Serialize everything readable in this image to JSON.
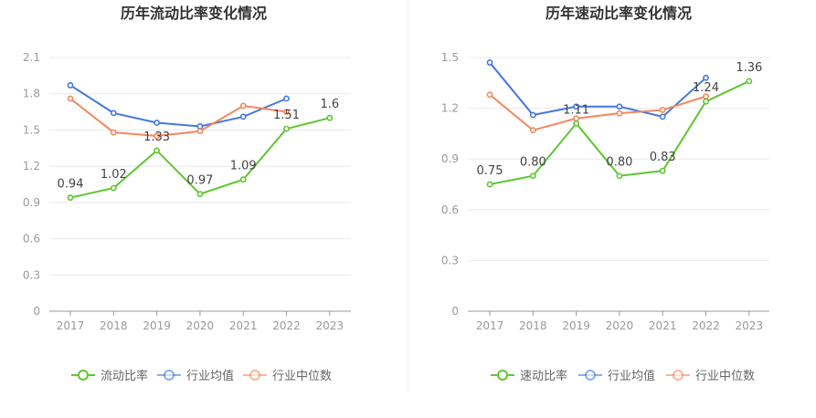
{
  "chart_data": [
    {
      "type": "line",
      "title": "历年流动比率变化情况",
      "categories": [
        "2017",
        "2018",
        "2019",
        "2020",
        "2021",
        "2022",
        "2023"
      ],
      "ylim": [
        0,
        2.1
      ],
      "yticks": [
        "0",
        "0.3",
        "0.6",
        "0.9",
        "1.2",
        "1.5",
        "1.8",
        "2.1"
      ],
      "grid": true,
      "legend_position": "bottom",
      "series": [
        {
          "name": "流动比率",
          "color": "#5fc632",
          "values": [
            0.94,
            1.02,
            1.33,
            0.97,
            1.09,
            1.51,
            1.6
          ],
          "labels": [
            "0.94",
            "1.02",
            "1.33",
            "0.97",
            "1.09",
            "1.51",
            "1.6"
          ]
        },
        {
          "name": "行业均值",
          "color": "#4378e0",
          "values": [
            1.87,
            1.64,
            1.56,
            1.53,
            1.61,
            1.76,
            null
          ]
        },
        {
          "name": "行业中位数",
          "color": "#f5875a",
          "values": [
            1.76,
            1.48,
            1.45,
            1.49,
            1.7,
            1.65,
            null
          ]
        }
      ]
    },
    {
      "type": "line",
      "title": "历年速动比率变化情况",
      "categories": [
        "2017",
        "2018",
        "2019",
        "2020",
        "2021",
        "2022",
        "2023"
      ],
      "ylim": [
        0,
        1.5
      ],
      "yticks": [
        "0",
        "0.3",
        "0.6",
        "0.9",
        "1.2",
        "1.5"
      ],
      "grid": true,
      "legend_position": "bottom",
      "series": [
        {
          "name": "速动比率",
          "color": "#5fc632",
          "values": [
            0.75,
            0.8,
            1.11,
            0.8,
            0.83,
            1.24,
            1.36
          ],
          "labels": [
            "0.75",
            "0.80",
            "1.11",
            "0.80",
            "0.83",
            "1.24",
            "1.36"
          ]
        },
        {
          "name": "行业均值",
          "color": "#4378e0",
          "values": [
            1.47,
            1.16,
            1.21,
            1.21,
            1.15,
            1.38,
            null
          ]
        },
        {
          "name": "行业中位数",
          "color": "#f5875a",
          "values": [
            1.28,
            1.07,
            1.14,
            1.17,
            1.19,
            1.27,
            null
          ]
        }
      ]
    }
  ]
}
